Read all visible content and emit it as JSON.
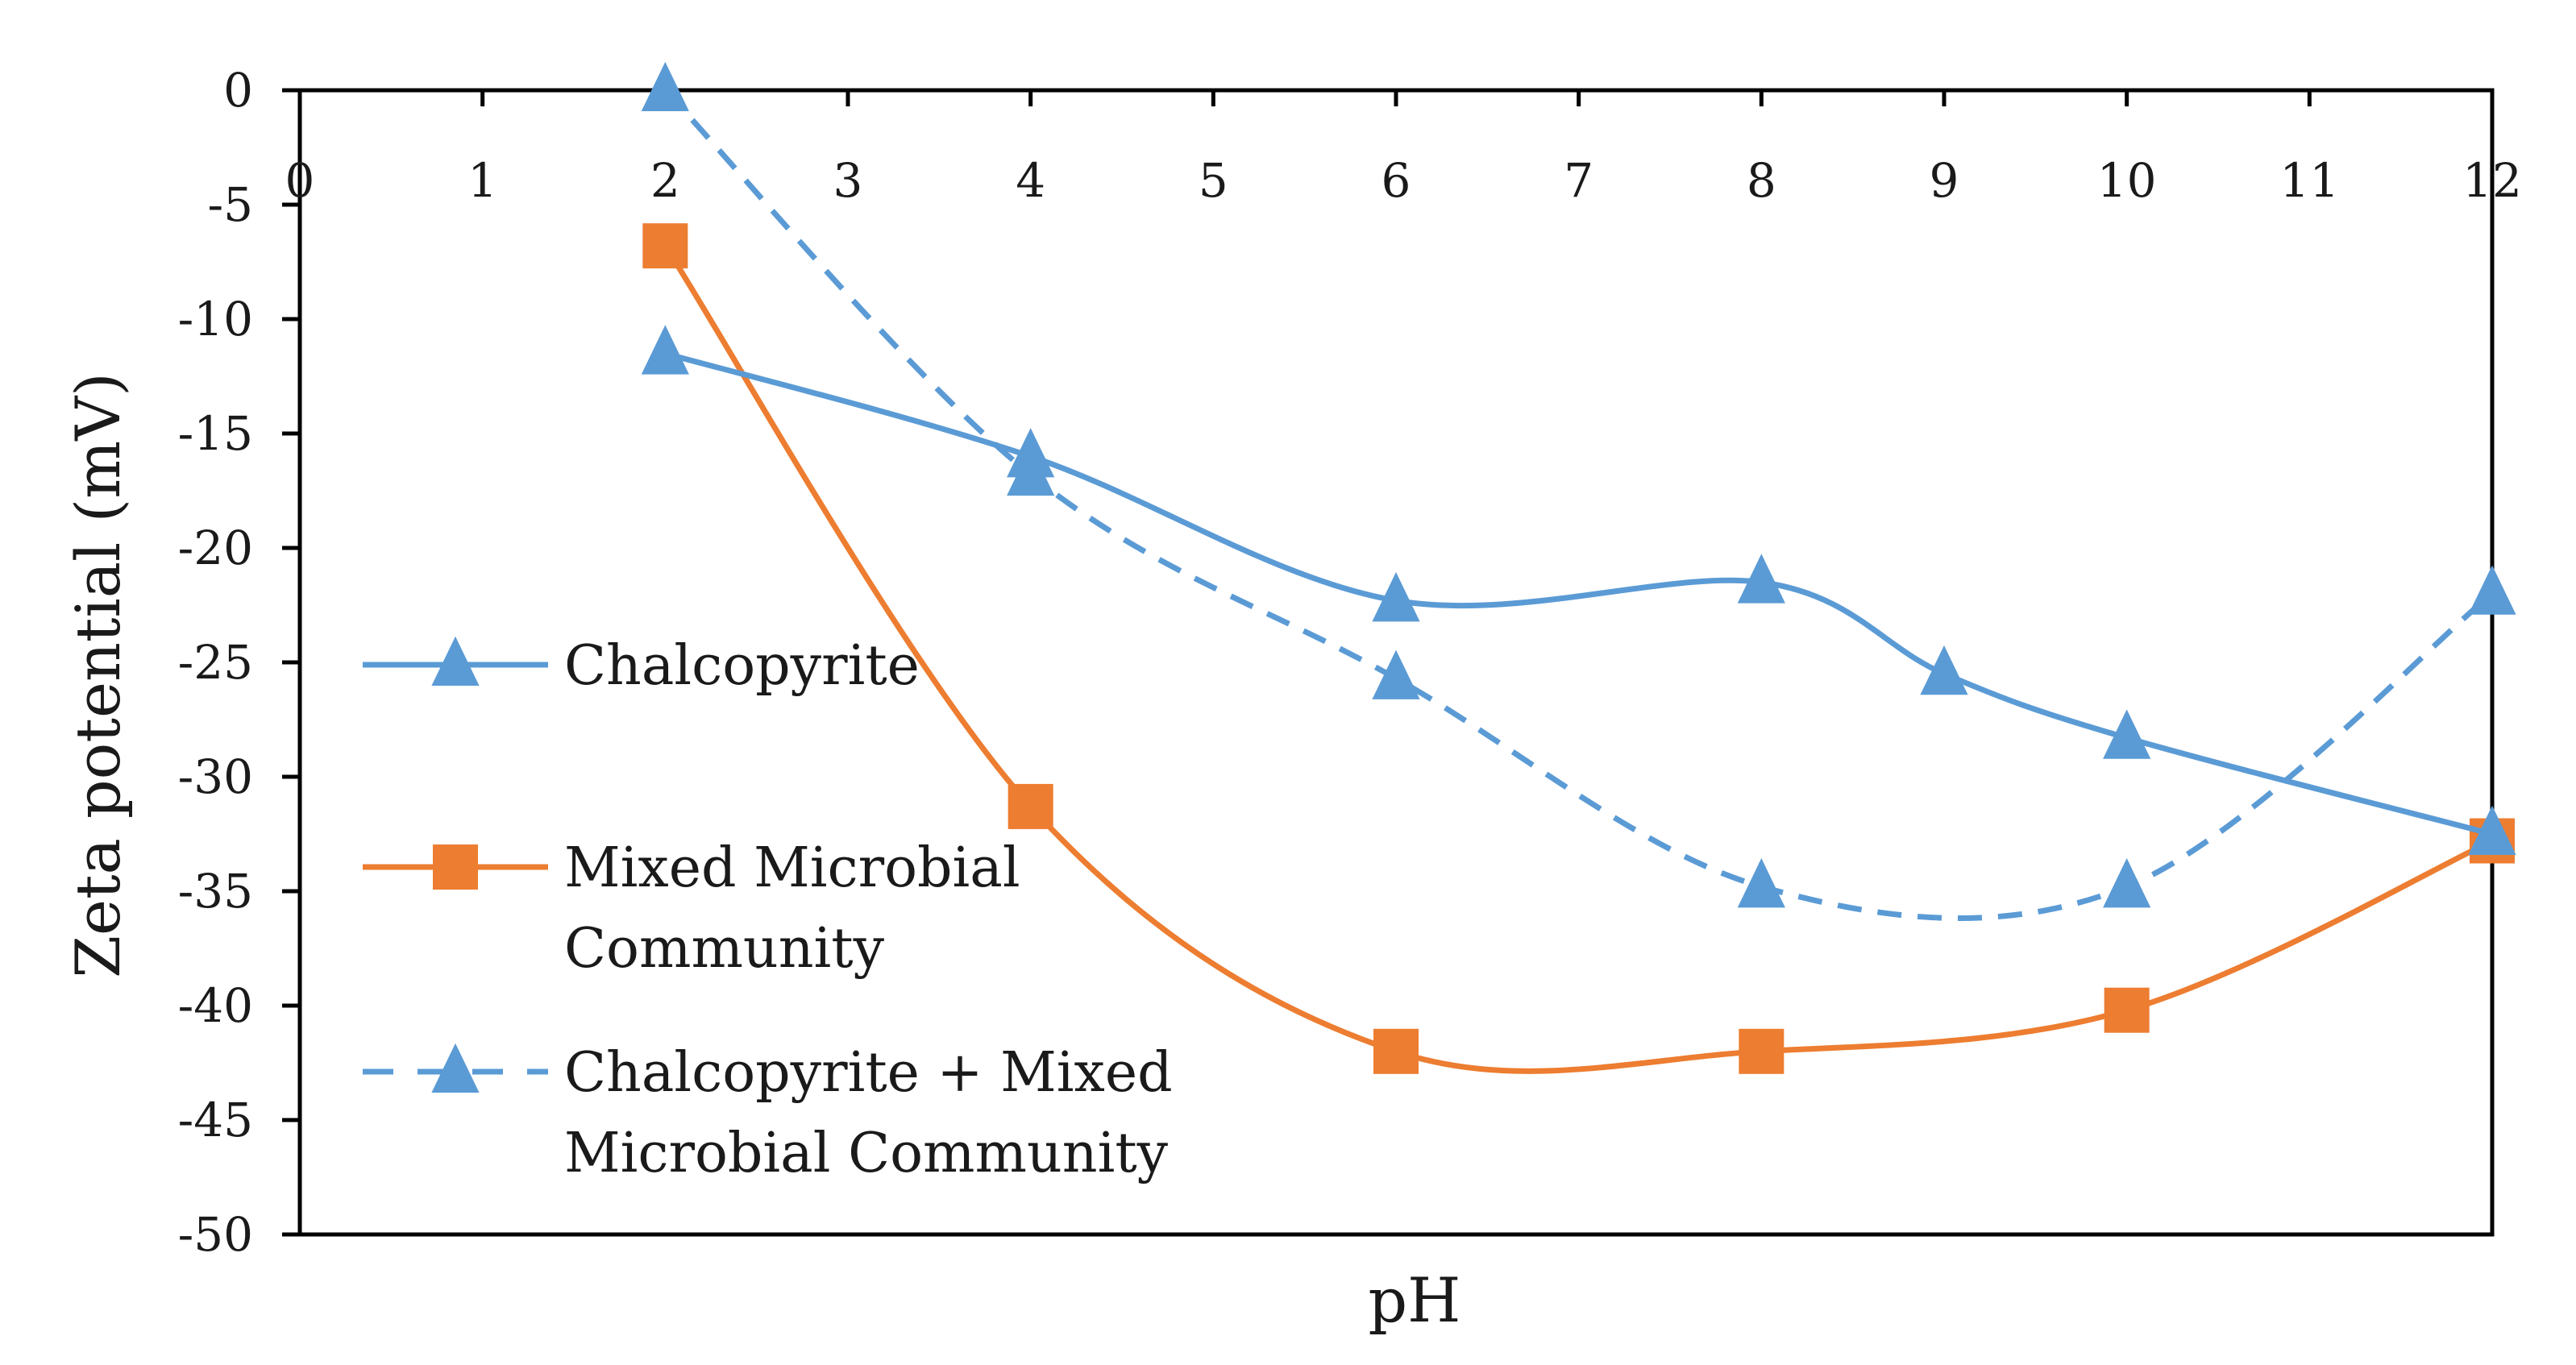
{
  "chart_data": {
    "type": "line",
    "title": "",
    "xlabel": "pH",
    "ylabel": "Zeta potential (mV)",
    "xlim": [
      0,
      12
    ],
    "ylim": [
      -50,
      0
    ],
    "x_ticks": [
      {
        "value": 0,
        "label": "0"
      },
      {
        "value": 1,
        "label": "1"
      },
      {
        "value": 2,
        "label": "2"
      },
      {
        "value": 3,
        "label": "3"
      },
      {
        "value": 4,
        "label": "4"
      },
      {
        "value": 5,
        "label": "5"
      },
      {
        "value": 6,
        "label": "6"
      },
      {
        "value": 7,
        "label": "7"
      },
      {
        "value": 8,
        "label": "8"
      },
      {
        "value": 9,
        "label": "9"
      },
      {
        "value": 10,
        "label": "10"
      },
      {
        "value": 11,
        "label": "11"
      },
      {
        "value": 12,
        "label": "12"
      }
    ],
    "y_ticks": [
      {
        "value": 0,
        "label": "0"
      },
      {
        "value": -5,
        "label": "-5"
      },
      {
        "value": -10,
        "label": "-10"
      },
      {
        "value": -15,
        "label": "-15"
      },
      {
        "value": -20,
        "label": "-20"
      },
      {
        "value": -25,
        "label": "-25"
      },
      {
        "value": -30,
        "label": "-30"
      },
      {
        "value": -35,
        "label": "-35"
      },
      {
        "value": -40,
        "label": "-40"
      },
      {
        "value": -45,
        "label": "-45"
      },
      {
        "value": -50,
        "label": "-50"
      }
    ],
    "x_axis_position": "top",
    "grid": false,
    "legend_position": "left",
    "series": [
      {
        "name": "Chalcopyrite",
        "legend_lines": [
          "Chalcopyrite"
        ],
        "color": "#5b9bd5",
        "marker": "triangle",
        "dash": "solid",
        "x": [
          2,
          4,
          6,
          8,
          9,
          10,
          12
        ],
        "y": [
          -11.5,
          -16,
          -22.3,
          -21.5,
          -25.5,
          -28.3,
          -32.5
        ]
      },
      {
        "name": "Mixed Microbial Community",
        "legend_lines": [
          "Mixed Microbial",
          "Community"
        ],
        "color": "#ed7d31",
        "marker": "square",
        "dash": "solid",
        "x": [
          2,
          4,
          6,
          8,
          10,
          12
        ],
        "y": [
          -6.8,
          -31.3,
          -42,
          -42,
          -40.2,
          -32.8
        ]
      },
      {
        "name": "Chalcopyrite + Mixed Microbial Community",
        "legend_lines": [
          "Chalcopyrite + Mixed",
          "Microbial Community"
        ],
        "color": "#5b9bd5",
        "marker": "triangle",
        "dash": "dashed",
        "x": [
          2,
          4,
          6,
          8,
          10,
          12
        ],
        "y": [
          0,
          -16.8,
          -25.7,
          -34.8,
          -34.8,
          -22
        ]
      }
    ]
  }
}
